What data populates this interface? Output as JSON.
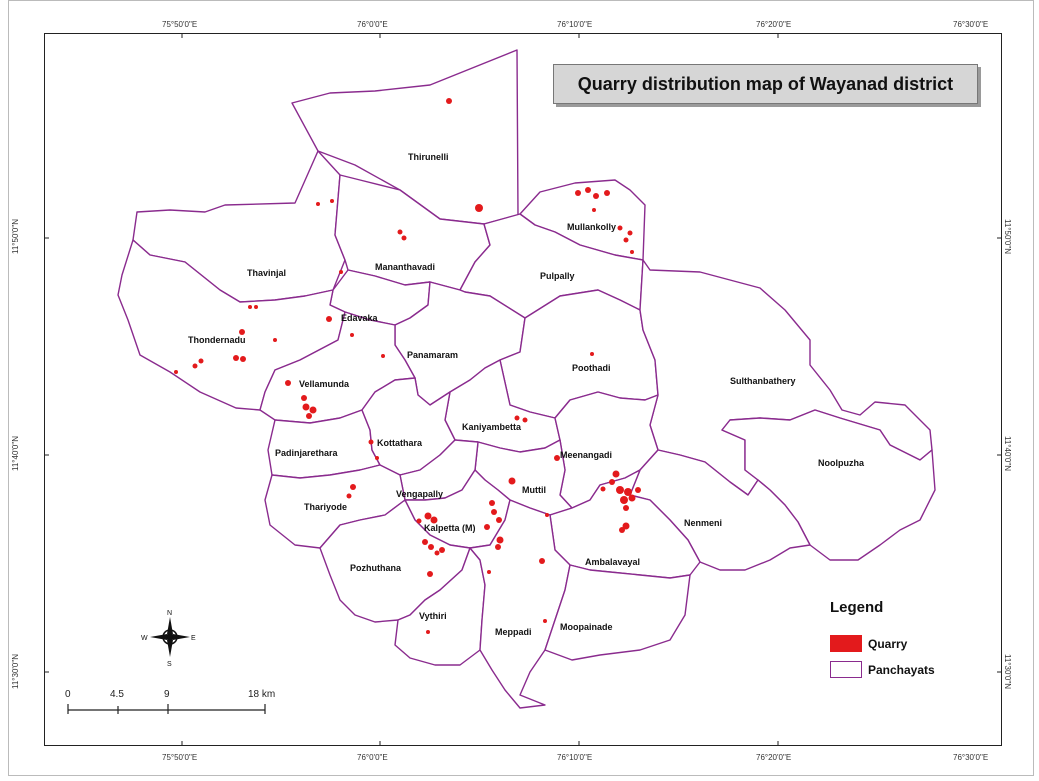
{
  "map": {
    "title": "Quarry distribution map of  Wayanad district",
    "top_ticks": [
      "75°50'0\"E",
      "76°0'0\"E",
      "76°10'0\"E",
      "76°20'0\"E",
      "76°30'0\"E"
    ],
    "bottom_ticks": [
      "75°50'0\"E",
      "76°0'0\"E",
      "76°10'0\"E",
      "76°20'0\"E",
      "76°30'0\"E"
    ],
    "left_ticks": [
      "11°50'0\"N",
      "11°40'0\"N",
      "11°30'0\"N"
    ],
    "right_ticks": [
      "11°50'0\"N",
      "11°40'0\"N",
      "11°30'0\"N"
    ],
    "panchayats": {
      "thirunelli": "Thirunelli",
      "mullankolly": "Mullankolly",
      "thavinjal": "Thavinjal",
      "mananthavadi": "Mananthavadi",
      "pulpally": "Pulpally",
      "edavaka": "Edavaka",
      "thondernadu": "Thondernadu",
      "panamaram": "Panamaram",
      "poothadi": "Poothadi",
      "vellamunda": "Vellamunda",
      "sulthanbathery": "Sulthanbathery",
      "kaniyambetta": "Kaniyambetta",
      "padinjarethara": "Padinjarethara",
      "kottathara": "Kottathara",
      "meenangadi": "Meenangadi",
      "noolpuzha": "Noolpuzha",
      "muttil": "Muttil",
      "vengapally": "Vengapally",
      "thariyode": "Thariyode",
      "kalpetta": "Kalpetta (M)",
      "nenmeni": "Nenmeni",
      "ambalavayal": "Ambalavayal",
      "pozhuthana": "Pozhuthana",
      "vythiri": "Vythiri",
      "meppadi": "Meppadi",
      "moopainade": "Moopainade"
    },
    "legend": {
      "title": "Legend",
      "items": [
        {
          "label": "Quarry",
          "color": "#e31a1c"
        },
        {
          "label": "Panchayats",
          "color": "#8a2b8e"
        }
      ]
    },
    "scale": {
      "labels": [
        "0",
        "4.5",
        "9",
        "18 km"
      ]
    },
    "north_arrow": {
      "n": "N",
      "s": "S",
      "e": "E",
      "w": "W"
    }
  }
}
